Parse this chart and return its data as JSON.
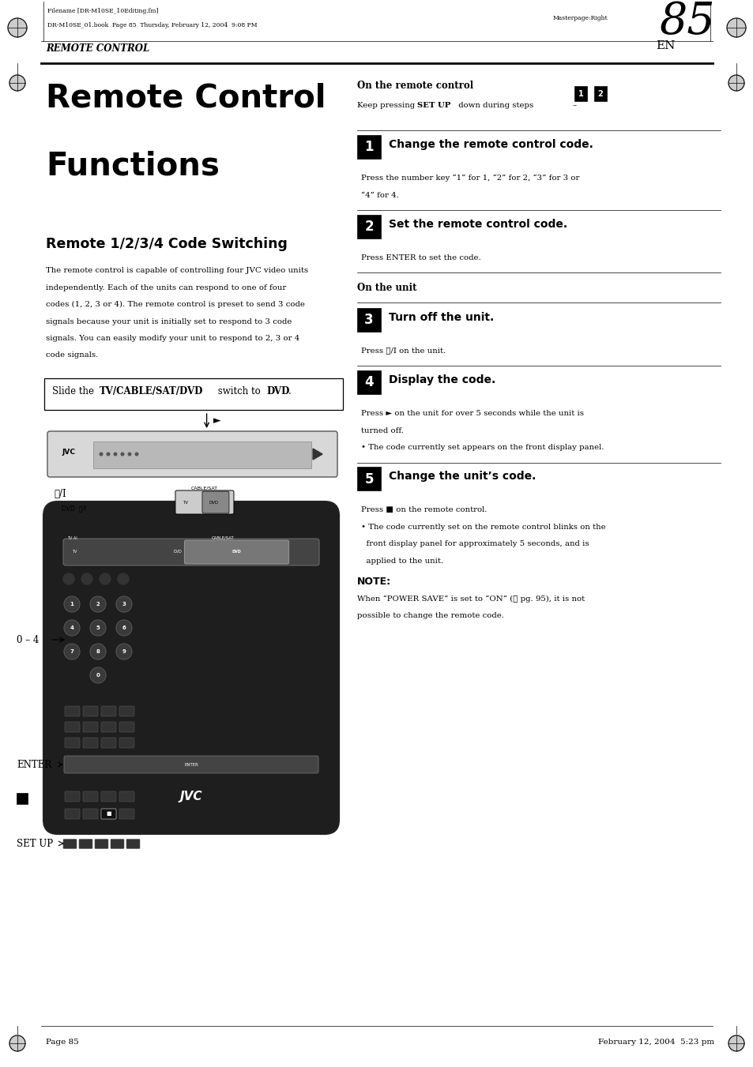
{
  "bg_color": "#ffffff",
  "page_width": 9.54,
  "page_height": 13.51,
  "header": {
    "filename_text": "Filename [DR-M10SE_10Editing.fm]",
    "book_text": "DR-M10SE_01.book  Page 85  Thursday, February 12, 2004  9:08 PM",
    "masterpage_text": "Masterpage:Right",
    "section_label": "REMOTE CONTROL",
    "page_num_prefix": "EN",
    "page_num": "85"
  },
  "title_line1": "Remote Control",
  "title_line2": "Functions",
  "subtitle": "Remote 1/2/3/4 Code Switching",
  "body_text": "The remote control is capable of controlling four JVC video units\nindependently. Each of the units can respond to one of four\ncodes (1, 2, 3 or 4). The remote control is preset to send 3 code\nsignals because your unit is initially set to respond to 3 code\nsignals. You can easily modify your unit to respond to 2, 3 or 4\ncode signals.",
  "right_col_header": "On the remote control",
  "steps": [
    {
      "num": "1",
      "title": "Change the remote control code.",
      "body": "Press the number key “1” for 1, “2” for 2, “3” for 3 or\n“4” for 4."
    },
    {
      "num": "2",
      "title": "Set the remote control code.",
      "body": "Press ENTER to set the code."
    },
    {
      "num": "3",
      "title": "Turn off the unit.",
      "body": "Press ⓘ/I on the unit.",
      "section_header": "On the unit"
    },
    {
      "num": "4",
      "title": "Display the code.",
      "body": "Press ► on the unit for over 5 seconds while the unit is\nturned off.\n• The code currently set appears on the front display panel."
    },
    {
      "num": "5",
      "title": "Change the unit’s code.",
      "body": "Press ■ on the remote control.\n• The code currently set on the remote control blinks on the\n  front display panel for approximately 5 seconds, and is\n  applied to the unit."
    }
  ],
  "note_title": "NOTE:",
  "note_body": "When “POWER SAVE” is set to “ON” (℡ pg. 95), it is not\npossible to change the remote code.",
  "footer_left": "Page 85",
  "footer_right": "February 12, 2004  5:23 pm",
  "col_split": 0.455
}
